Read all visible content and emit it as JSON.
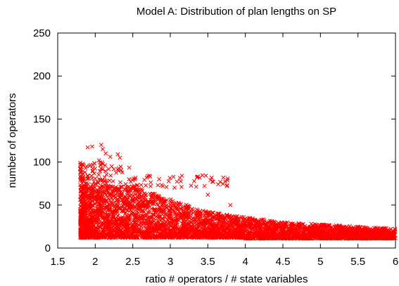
{
  "chart_data": {
    "type": "scatter",
    "title": "Model A: Distribution of plan lengths on SP",
    "xlabel": "ratio # operators / # state variables",
    "ylabel": "number of operators",
    "xlim": [
      1.5,
      6
    ],
    "ylim": [
      0,
      250
    ],
    "xticks": [
      1.5,
      2,
      2.5,
      3,
      3.5,
      4,
      4.5,
      5,
      5.5,
      6
    ],
    "xtick_labels": [
      "1.5",
      "2",
      "2.5",
      "3",
      "3.5",
      "4",
      "4.5",
      "5",
      "5.5",
      "6"
    ],
    "yticks": [
      0,
      50,
      100,
      150,
      200,
      250
    ],
    "ytick_labels": [
      "0",
      "50",
      "100",
      "150",
      "200",
      "250"
    ],
    "marker": "x",
    "color": "#ff0000",
    "grid": false,
    "legend": "none",
    "series": [
      {
        "points_note": "",
        "x": [
          1.82,
          1.85,
          1.9,
          1.95,
          2.0,
          2.05,
          2.1,
          2.15,
          2.2,
          2.25,
          2.3,
          2.35,
          2.4,
          2.5,
          2.6,
          2.7,
          2.8,
          2.9,
          3.0,
          3.1,
          3.2,
          3.3,
          3.5,
          3.7,
          3.8,
          4.0,
          4.2,
          4.5,
          4.8,
          5.0,
          5.3,
          5.6,
          5.9,
          1.9,
          1.96,
          2.05,
          2.08,
          2.1,
          2.14,
          2.2,
          2.22,
          2.3,
          2.33,
          2.36,
          2.45,
          2.9,
          2.95,
          3.15,
          3.5,
          3.8,
          1.83,
          1.88,
          1.92,
          1.98,
          2.03,
          2.12,
          2.18,
          2.28,
          2.42,
          2.55,
          2.65,
          2.75,
          3.05,
          3.25,
          3.45,
          3.65,
          3.95,
          4.15,
          4.35,
          4.65,
          4.95,
          5.25,
          5.55,
          5.85,
          5.98
        ],
        "y": [
          30,
          45,
          60,
          70,
          75,
          80,
          72,
          78,
          70,
          68,
          65,
          62,
          60,
          55,
          50,
          48,
          45,
          42,
          40,
          38,
          36,
          35,
          32,
          30,
          30,
          28,
          26,
          24,
          22,
          21,
          20,
          19,
          18,
          117,
          118,
          102,
          120,
          115,
          110,
          106,
          95,
          109,
          105,
          88,
          80,
          72,
          71,
          71,
          62,
          50,
          22,
          25,
          28,
          26,
          30,
          32,
          28,
          30,
          27,
          26,
          25,
          24,
          22,
          22,
          21,
          20,
          19,
          18,
          18,
          17,
          17,
          16,
          16,
          15,
          15
        ]
      }
    ]
  }
}
